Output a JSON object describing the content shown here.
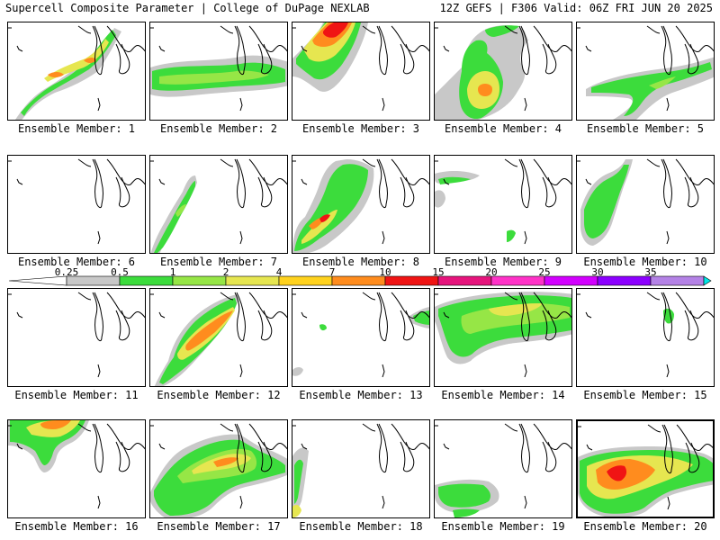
{
  "header": {
    "left": "Supercell Composite Parameter | College of DuPage NEXLAB",
    "right": "12Z GEFS | F306 Valid: 06Z FRI JUN 20 2025"
  },
  "legend": {
    "ticks": [
      "0.25",
      "0.5",
      "1",
      "2",
      "4",
      "7",
      "10",
      "15",
      "20",
      "25",
      "30",
      "35"
    ],
    "colors": [
      "#c8c8c8",
      "#3cdc3c",
      "#96e646",
      "#e6e650",
      "#ffd21e",
      "#ff8c1e",
      "#f01414",
      "#e6147d",
      "#ff32c8",
      "#d200ff",
      "#8c00ff",
      "#b482e6",
      "#00e6e6"
    ]
  },
  "colors": {
    "gray": "#c8c8c8",
    "green": "#3cdc3c",
    "lime": "#96e646",
    "yellow": "#e6e650",
    "orange": "#ff8c1e",
    "red": "#f01414",
    "magenta": "#e6147d"
  },
  "panels": [
    {
      "label": "Ensemble Member: 1"
    },
    {
      "label": "Ensemble Member: 2"
    },
    {
      "label": "Ensemble Member: 3"
    },
    {
      "label": "Ensemble Member: 4"
    },
    {
      "label": "Ensemble Member: 5"
    },
    {
      "label": "Ensemble Member: 6"
    },
    {
      "label": "Ensemble Member: 7"
    },
    {
      "label": "Ensemble Member: 8"
    },
    {
      "label": "Ensemble Member: 9"
    },
    {
      "label": "Ensemble Member: 10"
    },
    {
      "label": "Ensemble Member: 11"
    },
    {
      "label": "Ensemble Member: 12"
    },
    {
      "label": "Ensemble Member: 13"
    },
    {
      "label": "Ensemble Member: 14"
    },
    {
      "label": "Ensemble Member: 15"
    },
    {
      "label": "Ensemble Member: 16"
    },
    {
      "label": "Ensemble Member: 17"
    },
    {
      "label": "Ensemble Member: 18"
    },
    {
      "label": "Ensemble Member: 19"
    },
    {
      "label": "Ensemble Member: 20"
    }
  ]
}
